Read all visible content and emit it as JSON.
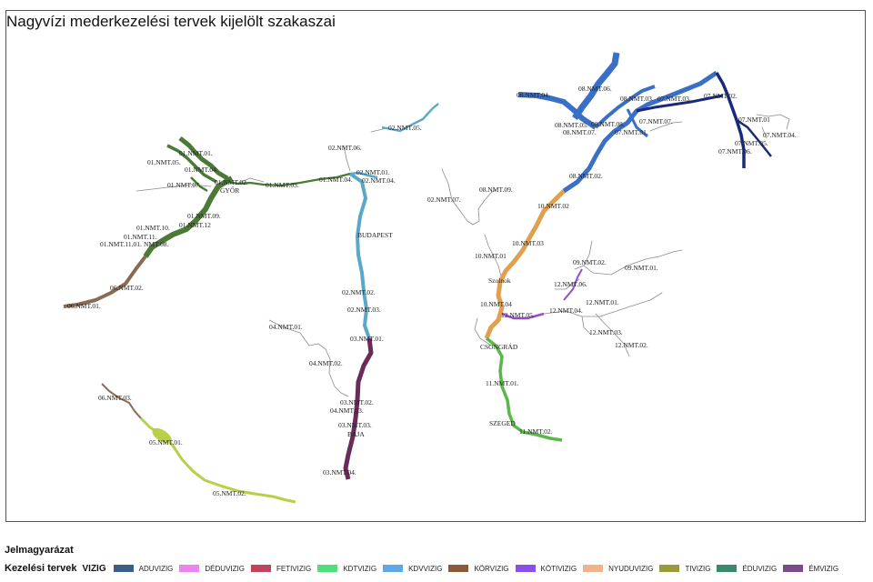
{
  "title": "Nagyvízi mederkezelési tervek kijelölt szakaszai",
  "legend": {
    "title": "Jelmagyarázat",
    "row_label": "Kezelési tervek",
    "field_label": "VIZIG",
    "items": [
      {
        "name": "ADUVIZIG",
        "color": "#3a5f86"
      },
      {
        "name": "DÉDUVIZIG",
        "color": "#ee82ee"
      },
      {
        "name": "FETIVIZIG",
        "color": "#c0445e"
      },
      {
        "name": "KDTVIZIG",
        "color": "#4fe07d"
      },
      {
        "name": "KDVVIZIG",
        "color": "#5fa8e6"
      },
      {
        "name": "KÖRVIZIG",
        "color": "#8a5a3a"
      },
      {
        "name": "KÖTIVIZIG",
        "color": "#8a4fe8"
      },
      {
        "name": "NYUDUVIZIG",
        "color": "#f0b48c"
      },
      {
        "name": "TIVIZIG",
        "color": "#9a9a3a"
      },
      {
        "name": "ÉDUVIZIG",
        "color": "#3a8a6a"
      },
      {
        "name": "ÉMVIZIG",
        "color": "#7a4a8a"
      }
    ]
  },
  "section_colors": {
    "eduvizig": "#4a7a36",
    "korvizig": "#8a6a52",
    "kdvvizig": "#5aa8c8",
    "adu": "#6a2a5a",
    "kdtvizig": "#b8d048",
    "kotivizig": "#e0a050",
    "fetivizig": "#3a6fc8",
    "emvizig": "#1a2a7a",
    "tivizig": "#9a4ad0",
    "atikovizig": "#5ab848"
  },
  "labels": {
    "n01_01": "01.NMT.01.",
    "n01_05": "01.NMT.05.",
    "n01_04": "01.NMT.04.",
    "n01_02": "01.NMT.02.",
    "n01_07": "01.NMT.07.",
    "n01_09": "01.NMT.09.",
    "n01_12": "01.NMT.12",
    "n01_10": "01.NMT.10.",
    "n01_11": "01.NMT.11.",
    "n01_1101": "01.NMT.11.01.",
    "n01_08": "NMT.08.",
    "n01_03": "01.NMT.03.",
    "n01_04b": "01.NMT.04.",
    "gyor": "GYŐR",
    "n06_02": "06.NMT.02.",
    "n06_01": "06.NMT.01.",
    "n02_06": "02.NMT.06.",
    "n02_05": "02.NMT.05.",
    "n02_01": "02.NMT.01.",
    "n02_04": "02.NMT.04.",
    "budapest": "BUDAPEST",
    "n02_02": "02.NMT.02.",
    "n02_03": "02.NMT.03.",
    "n03_01": "03.NMT.01.",
    "n04_01": "04.NMT.01.",
    "n04_02": "04.NMT.02.",
    "n03_02": "03.NMT.02.",
    "n04_03": "04.NMT.03.",
    "n03_03": "03.NMT.03.",
    "baja": "BAJA",
    "n03_04": "03.NMT.04.",
    "n06_03": "06.NMT.03.",
    "n05_01": "05.NMT.01.",
    "n05_02": "05.NMT.02.",
    "n02_07": "02.NMT.07.",
    "n08_09": "08.NMT.09.",
    "n10_02": "10.NMT.02",
    "n10_03": "10.NMT.03",
    "n10_01": "10.NMT.01",
    "szolnok": "Szolnok",
    "n10_04": "10.NMT.04",
    "n12_05": "12.NMT.05.",
    "csongrad": "CSONGRÁD",
    "n11_01": "11.NMT.01.",
    "szeged": "SZEGED",
    "n11_02": "11.NMT.02.",
    "n09_02": "09.NMT.02.",
    "n12_06": "12.NMT.06.",
    "n09_01": "09.NMT.01.",
    "n12_01": "12.NMT.01.",
    "n12_04": "12.NMT.04.",
    "n12_03": "12.NMT.03.",
    "n12_02": "12.NMT.02.",
    "n08_04": "08.NMT.04.",
    "n08_06": "08.NMT.06.",
    "n08_03": "08.NMT.03.",
    "n07_03": "07.NMT.03.",
    "n08_05": "08.NMT.05.",
    "n08_08": "08.NMT.08.",
    "n08_07": "08.NMT.07.",
    "n07_07": "07.NMT.07.",
    "n07_01": "07.NMT.01.",
    "n08_02": "08.NMT.02.",
    "n07_02": "07.NMT.02.",
    "n07_01b": "07.NMT.01",
    "n07_04": "07.NMT.04.",
    "n07_05": "07.NMT.05.",
    "n07_06": "07.NMT.06."
  }
}
